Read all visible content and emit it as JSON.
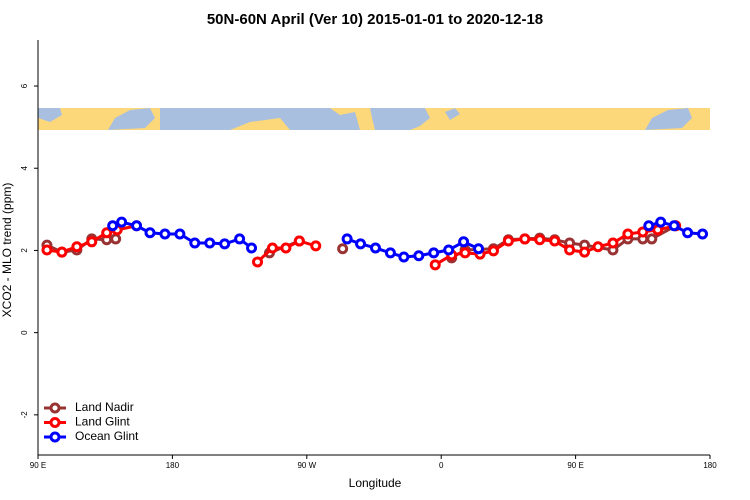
{
  "chart_data": {
    "type": "line",
    "title": "50N-60N April (Ver 10)   2015-01-01 to 2020-12-18",
    "x_label": "Longitude",
    "y_label": "XCO2 - MLO trend (ppm)",
    "xlim": [
      90,
      540
    ],
    "xticks": [
      {
        "value": 90,
        "label": "90 E"
      },
      {
        "value": 180,
        "label": "180"
      },
      {
        "value": 270,
        "label": "90 W"
      },
      {
        "value": 360,
        "label": "0"
      },
      {
        "value": 450,
        "label": "90 E"
      },
      {
        "value": 540,
        "label": "180"
      }
    ],
    "ylim": [
      -3.05,
      7.12
    ],
    "yticks": [
      -2,
      0,
      2,
      4,
      6
    ],
    "legend": "bottom-left",
    "series": [
      {
        "name": "Land Nadir",
        "color": "#993333",
        "x": [
          96,
          106,
          116,
          126,
          136,
          142,
          null,
          245,
          265,
          null,
          294,
          null,
          367,
          376,
          395,
          405,
          416,
          426,
          436,
          446,
          456,
          475,
          485,
          495,
          501,
          517
        ],
        "values": [
          2.13,
          1.96,
          2.01,
          2.28,
          2.26,
          2.28,
          null,
          1.94,
          2.23,
          null,
          2.04,
          null,
          1.82,
          2.01,
          2.04,
          2.26,
          2.28,
          2.3,
          2.26,
          2.18,
          2.13,
          2.01,
          2.28,
          2.28,
          2.28,
          2.6
        ]
      },
      {
        "name": "Land Glint",
        "color": "#ff0000",
        "x": [
          96,
          106,
          116,
          126,
          136,
          143,
          156,
          null,
          237,
          247,
          256,
          265,
          276,
          null,
          356,
          367,
          376,
          386,
          395,
          405,
          416,
          426,
          436,
          446,
          456,
          465,
          475,
          485,
          495,
          505,
          517
        ],
        "values": [
          2.01,
          1.96,
          2.09,
          2.21,
          2.43,
          2.5,
          2.6,
          null,
          1.72,
          2.06,
          2.06,
          2.23,
          2.11,
          null,
          1.65,
          1.89,
          1.94,
          1.91,
          1.99,
          2.23,
          2.28,
          2.26,
          2.23,
          2.01,
          1.96,
          2.09,
          2.18,
          2.4,
          2.45,
          2.5,
          2.6
        ]
      },
      {
        "name": "Ocean Glint",
        "color": "#0000ff",
        "x": [
          140,
          146,
          156,
          165,
          175,
          185,
          195,
          205,
          215,
          225,
          233,
          null,
          297,
          306,
          316,
          326,
          335,
          345,
          355,
          365,
          375,
          385,
          null,
          499,
          507,
          516,
          525,
          535
        ],
        "values": [
          2.6,
          2.69,
          2.6,
          2.43,
          2.4,
          2.4,
          2.18,
          2.18,
          2.16,
          2.28,
          2.06,
          null,
          2.28,
          2.16,
          2.06,
          1.94,
          1.84,
          1.87,
          1.94,
          2.01,
          2.21,
          2.04,
          null,
          2.6,
          2.69,
          2.6,
          2.43,
          2.4
        ]
      }
    ]
  }
}
